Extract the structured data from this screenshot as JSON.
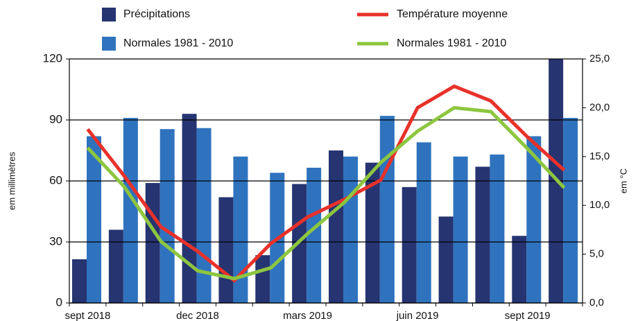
{
  "chart_data": {
    "type": "bar",
    "y_label": "em millimètres",
    "y2_label": "em °C",
    "categories": [
      "sept 2018",
      null,
      null,
      "dec 2018",
      null,
      null,
      "mars 2019",
      null,
      null,
      "juin 2019",
      null,
      null,
      "sept 2019",
      null
    ],
    "series": [
      {
        "name": "Précipitations",
        "color": "#263471",
        "type": "bar",
        "values": [
          21.5,
          36,
          59,
          93,
          52,
          23.5,
          58.5,
          75,
          69,
          57,
          42.5,
          67,
          33,
          120
        ]
      },
      {
        "name": "Normales 1981 - 2010",
        "color": "#2f73be",
        "type": "bar",
        "values": [
          82,
          91,
          85.5,
          86,
          72,
          64,
          66.5,
          72,
          92,
          79,
          72,
          73,
          82,
          91
        ]
      },
      {
        "name": "Température moyenne",
        "color": "#e8312a",
        "type": "line",
        "axis": "y2",
        "values": [
          17.8,
          13.0,
          7.8,
          5.3,
          2.3,
          6.1,
          8.8,
          10.6,
          12.6,
          20.0,
          22.2,
          20.7,
          17.0,
          13.6
        ]
      },
      {
        "name": "Normales 1981 - 2010",
        "color": "#8dc63f",
        "type": "line",
        "axis": "y2",
        "values": [
          15.9,
          11.9,
          6.3,
          3.3,
          2.5,
          3.6,
          7.1,
          10.3,
          14.4,
          17.6,
          20.0,
          19.6,
          15.8,
          11.8
        ]
      }
    ],
    "ylim": [
      0,
      120
    ],
    "yticks": [
      0,
      30,
      60,
      90,
      120
    ],
    "y2lim": [
      0,
      25
    ],
    "y2ticks": [
      {
        "value": 0,
        "label": "0,0"
      },
      {
        "value": 5,
        "label": "5,0"
      },
      {
        "value": 10,
        "label": "10,0"
      },
      {
        "value": 15,
        "label": "15,0"
      },
      {
        "value": 20,
        "label": "20,0"
      },
      {
        "value": 25,
        "label": "25,0"
      }
    ],
    "grid": true
  }
}
